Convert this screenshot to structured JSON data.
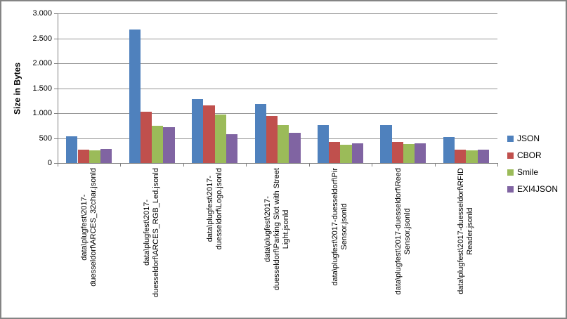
{
  "colors": {
    "json": "#4F81BD",
    "cbor": "#C0504D",
    "smile": "#9BBB59",
    "exi4json": "#8064A2",
    "gridline": "#969696",
    "axis": "#808080",
    "border": "#848484",
    "text": "#000000",
    "background": "#FFFFFF"
  },
  "chart_data": {
    "type": "bar",
    "title": "",
    "xlabel": "",
    "ylabel": "Size in Bytes",
    "ylim": [
      0,
      3000
    ],
    "ytick_interval": 500,
    "ytick_labels": [
      "0",
      "500",
      "1.000",
      "1.500",
      "2.000",
      "2.500",
      "3.000"
    ],
    "grid": true,
    "legend_position": "right",
    "legend_labels": [
      "JSON",
      "CBOR",
      "Smile",
      "EXI4JSON"
    ],
    "categories": [
      "data\\plugfest\\2017-\nduesseldorf\\ARCES_32char.jsonld",
      "data\\plugfest\\2017-\nduesseldorf\\ARCES_RGB_Led.jsonld",
      "data\\plugfest\\2017-\nduesseldorf\\Logo.jsonld",
      "data\\plugfest\\2017-\nduesseldorf\\Parking Slot with Street\nLight.jsonld",
      "data\\plugfest\\2017-duesseldorf\\Pir\nSensor.jsonld",
      "data\\plugfest\\2017-duesseldorf\\Reed\nSensor.jsonld",
      "data\\plugfest\\2017-duesseldorf\\RFID\nReader.jsonld"
    ],
    "series": [
      {
        "name": "JSON",
        "color": "#4F81BD",
        "values": [
          540,
          2680,
          1280,
          1180,
          760,
          760,
          525
        ]
      },
      {
        "name": "CBOR",
        "color": "#C0504D",
        "values": [
          275,
          1030,
          1155,
          950,
          430,
          430,
          270
        ]
      },
      {
        "name": "Smile",
        "color": "#9BBB59",
        "values": [
          257,
          745,
          970,
          755,
          370,
          385,
          248
        ]
      },
      {
        "name": "EXI4JSON",
        "color": "#8064A2",
        "values": [
          285,
          715,
          585,
          600,
          395,
          400,
          270
        ]
      }
    ]
  }
}
